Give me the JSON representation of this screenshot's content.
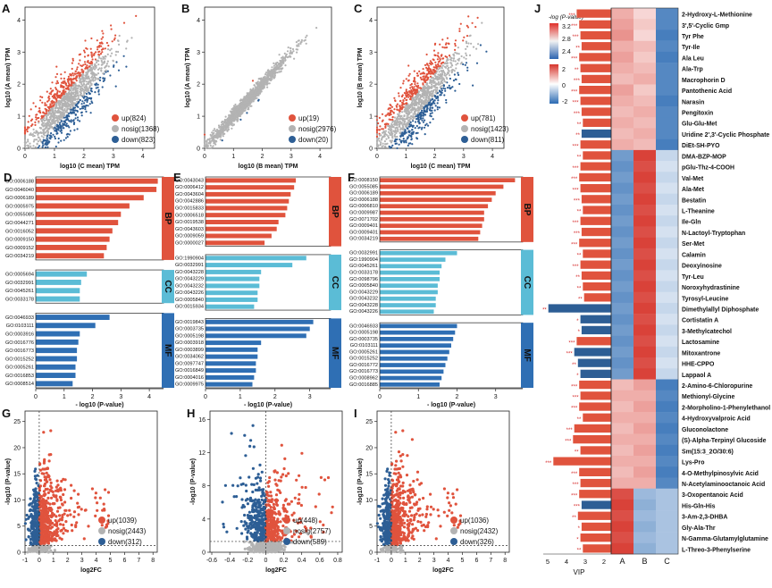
{
  "colors": {
    "up": "#e0533d",
    "nosig": "#b3b3b3",
    "down": "#2d5e95",
    "bp": "#e0533d",
    "cc": "#5bbcd6",
    "mf": "#2f6fb4",
    "vip_pos": "#e0533d",
    "vip_neg": "#2d5e95"
  },
  "scatter_panels": [
    {
      "letter": "A",
      "ylabel": "log10 (A mean) TPM",
      "xlabel": "log10 (C mean) TPM",
      "legend": [
        {
          "kind": "up",
          "label": "up(824)"
        },
        {
          "kind": "nosig",
          "label": "nosig(1368)"
        },
        {
          "kind": "down",
          "label": "down(823)"
        }
      ],
      "xticks": [
        0,
        1,
        2,
        3,
        4
      ],
      "yticks": [
        0,
        1,
        2,
        3,
        4
      ],
      "spread": "wide"
    },
    {
      "letter": "B",
      "ylabel": "log10 (A mean) TPM",
      "xlabel": "log10 (B mean) TPM",
      "legend": [
        {
          "kind": "up",
          "label": "up(19)"
        },
        {
          "kind": "nosig",
          "label": "nosig(2976)"
        },
        {
          "kind": "down",
          "label": "down(20)"
        }
      ],
      "xticks": [
        0,
        1,
        2,
        3,
        4
      ],
      "yticks": [
        0,
        1,
        2,
        3,
        4
      ],
      "spread": "narrow"
    },
    {
      "letter": "C",
      "ylabel": "log10 (B mean) TPM",
      "xlabel": "log10 (C mean) TPM",
      "legend": [
        {
          "kind": "up",
          "label": "up(781)"
        },
        {
          "kind": "nosig",
          "label": "nosig(1423)"
        },
        {
          "kind": "down",
          "label": "down(811)"
        }
      ],
      "xticks": [
        0,
        1,
        2,
        3,
        4
      ],
      "yticks": [
        0,
        1,
        2,
        3,
        4
      ],
      "spread": "wide"
    }
  ],
  "go_panels": [
    {
      "letter": "D",
      "xlabel": "- log10 (P-value)",
      "xticks": [
        0,
        1,
        2,
        3,
        4
      ],
      "xmax": 4.5,
      "groups": [
        {
          "name": "BP",
          "terms": [
            [
              "GO:0006188",
              4.3
            ],
            [
              "GO:0046040",
              4.25
            ],
            [
              "GO:0006189",
              3.8
            ],
            [
              "GO:0005975",
              3.3
            ],
            [
              "GO:0055085",
              3.0
            ],
            [
              "GO:0044271",
              2.9
            ],
            [
              "GO:0016052",
              2.7
            ],
            [
              "GO:0009150",
              2.6
            ],
            [
              "GO:0009152",
              2.5
            ],
            [
              "GO:0034219",
              2.4
            ]
          ]
        },
        {
          "name": "CC",
          "terms": [
            [
              "GO:0005694",
              1.8
            ],
            [
              "GO:0032991",
              1.6
            ],
            [
              "GO:0045261",
              1.55
            ],
            [
              "GO:0033178",
              1.55
            ]
          ]
        },
        {
          "name": "MF",
          "terms": [
            [
              "GO:0046933",
              2.6
            ],
            [
              "GO:0103111",
              2.1
            ],
            [
              "GO:0003916",
              1.55
            ],
            [
              "GO:0016776",
              1.5
            ],
            [
              "GO:0016773",
              1.45
            ],
            [
              "GO:0015252",
              1.45
            ],
            [
              "GO:0005261",
              1.4
            ],
            [
              "GO:0016853",
              1.4
            ],
            [
              "GO:0008514",
              1.3
            ]
          ]
        }
      ]
    },
    {
      "letter": "E",
      "xlabel": "- log10 (P-value)",
      "xticks": [
        0,
        1,
        2,
        3
      ],
      "xmax": 3.6,
      "groups": [
        {
          "name": "BP",
          "terms": [
            [
              "GO:0043043",
              2.6
            ],
            [
              "GO:0006412",
              2.55
            ],
            [
              "GO:0043604",
              2.45
            ],
            [
              "GO:0042886",
              2.4
            ],
            [
              "GO:0015833",
              2.35
            ],
            [
              "GO:0006518",
              2.3
            ],
            [
              "GO:0019538",
              2.1
            ],
            [
              "GO:0043603",
              2.05
            ],
            [
              "GO:0009059",
              1.9
            ],
            [
              "GO:0000027",
              1.7
            ]
          ]
        },
        {
          "name": "CC",
          "terms": [
            [
              "GO:1990904",
              2.9
            ],
            [
              "GO:0032991",
              2.5
            ],
            [
              "GO:0043228",
              1.6
            ],
            [
              "GO:0043229",
              1.55
            ],
            [
              "GO:0043232",
              1.55
            ],
            [
              "GO:0043226",
              1.5
            ],
            [
              "GO:0005840",
              1.5
            ],
            [
              "GO:0015934",
              1.4
            ]
          ]
        },
        {
          "name": "MF",
          "terms": [
            [
              "GO:0019843",
              3.1
            ],
            [
              "GO:0003735",
              3.0
            ],
            [
              "GO:0005198",
              2.9
            ],
            [
              "GO:0003918",
              1.6
            ],
            [
              "GO:0003899",
              1.5
            ],
            [
              "GO:0034062",
              1.5
            ],
            [
              "GO:0097747",
              1.45
            ],
            [
              "GO:0016849",
              1.45
            ],
            [
              "GO:0004016",
              1.4
            ],
            [
              "GO:0009975",
              1.35
            ]
          ]
        }
      ]
    },
    {
      "letter": "F",
      "xlabel": "- log10 (P-value)",
      "xticks": [
        0,
        1,
        2,
        3
      ],
      "xmax": 3.7,
      "groups": [
        {
          "name": "BP",
          "terms": [
            [
              "GO:0008150",
              3.5
            ],
            [
              "GO:0055085",
              3.2
            ],
            [
              "GO:0006189",
              3.0
            ],
            [
              "GO:0006188",
              2.9
            ],
            [
              "GO:0006810",
              2.8
            ],
            [
              "GO:0009987",
              2.7
            ],
            [
              "GO:0071702",
              2.7
            ],
            [
              "GO:0009401",
              2.65
            ],
            [
              "GO:0009401",
              2.6
            ],
            [
              "GO:0034219",
              2.55
            ]
          ]
        },
        {
          "name": "CC",
          "terms": [
            [
              "GO:0032991",
              2.0
            ],
            [
              "GO:1990904",
              1.7
            ],
            [
              "GO:0045261",
              1.6
            ],
            [
              "GO:0033178",
              1.55
            ],
            [
              "GO:0098796",
              1.55
            ],
            [
              "GO:0005840",
              1.5
            ],
            [
              "GO:0043229",
              1.5
            ],
            [
              "GO:0043232",
              1.45
            ],
            [
              "GO:0043228",
              1.45
            ],
            [
              "GO:0043226",
              1.4
            ]
          ]
        },
        {
          "name": "MF",
          "terms": [
            [
              "GO:0046933",
              2.0
            ],
            [
              "GO:0005198",
              1.95
            ],
            [
              "GO:0003735",
              1.9
            ],
            [
              "GO:0103111",
              1.85
            ],
            [
              "GO:0005261",
              1.8
            ],
            [
              "GO:0015252",
              1.75
            ],
            [
              "GO:0016772",
              1.7
            ],
            [
              "GO:0016773",
              1.65
            ],
            [
              "GO:0008962",
              1.6
            ],
            [
              "GO:0016885",
              1.55
            ]
          ]
        }
      ]
    }
  ],
  "volcano_panels": [
    {
      "letter": "G",
      "ylabel": "-log10 (P-value)",
      "xlabel": "log2FC",
      "xticks": [
        -1,
        0,
        1,
        2,
        3,
        4,
        5,
        6,
        7,
        8
      ],
      "yticks": [
        0,
        5,
        10,
        15,
        20,
        25
      ],
      "xlim": [
        -1,
        8.3
      ],
      "ylim": [
        0,
        27
      ],
      "legend": [
        {
          "kind": "up",
          "label": "up(1039)"
        },
        {
          "kind": "nosig",
          "label": "nosig(2443)"
        },
        {
          "kind": "down",
          "label": "down(312)"
        }
      ]
    },
    {
      "letter": "H",
      "ylabel": "-log10 (P-value)",
      "xlabel": "log2FC",
      "xticks": [
        -0.6,
        -0.4,
        -0.2,
        0.0,
        0.2,
        0.4,
        0.6,
        0.8
      ],
      "yticks": [
        0,
        4,
        8,
        12,
        16
      ],
      "xlim": [
        -0.62,
        0.85
      ],
      "ylim": [
        0,
        17
      ],
      "legend": [
        {
          "kind": "up",
          "label": "up(448)"
        },
        {
          "kind": "nosig",
          "label": "nosig(2757)"
        },
        {
          "kind": "down",
          "label": "down(589)"
        }
      ]
    },
    {
      "letter": "I",
      "ylabel": "-log10 (P-value)",
      "xlabel": "log2FC",
      "xticks": [
        -1,
        0,
        1,
        2,
        3,
        4,
        5,
        6,
        7,
        8
      ],
      "yticks": [
        0,
        5,
        10,
        15,
        20,
        25
      ],
      "xlim": [
        -1,
        8.3
      ],
      "ylim": [
        0,
        27
      ],
      "legend": [
        {
          "kind": "up",
          "label": "up(1036)"
        },
        {
          "kind": "nosig",
          "label": "nosig(2432)"
        },
        {
          "kind": "down",
          "label": "down(326)"
        }
      ]
    }
  ],
  "panel_j": {
    "letter": "J",
    "legend_title": "-log (P-value)",
    "pv_ticks": [
      "3.2",
      "2.8",
      "2.4"
    ],
    "fc_ticks": [
      "2",
      "0",
      "-2"
    ],
    "vip_label": "VIP",
    "vip_ticks": [
      "5",
      "4",
      "3",
      "2"
    ],
    "columns": [
      "A",
      "B",
      "C"
    ],
    "rows": [
      [
        "2-Hydroxy-L-Methionine",
        "***",
        2.8,
        [
          0.6,
          0.3,
          -1.2
        ]
      ],
      [
        "3',5'-Cyclic Gmp",
        "***",
        2.6,
        [
          0.7,
          0.4,
          -1.2
        ]
      ],
      [
        "Tyr Phe",
        "***",
        2.5,
        [
          0.8,
          0.3,
          -1.3
        ]
      ],
      [
        "Tyr-Ile",
        "**",
        2.4,
        [
          0.6,
          0.5,
          -1.2
        ]
      ],
      [
        "Ala Leu",
        "***",
        2.6,
        [
          0.7,
          0.4,
          -1.3
        ]
      ],
      [
        "Ala-Trp",
        "**",
        2.5,
        [
          0.6,
          0.5,
          -1.2
        ]
      ],
      [
        "Macrophorin D",
        "***",
        2.4,
        [
          0.5,
          0.6,
          -1.2
        ]
      ],
      [
        "Pantothenic Acid",
        "***",
        2.6,
        [
          0.7,
          0.4,
          -1.2
        ]
      ],
      [
        "Narasin",
        "***",
        2.5,
        [
          0.6,
          0.5,
          -1.3
        ]
      ],
      [
        "Pengitoxin",
        "***",
        2.4,
        [
          0.5,
          0.6,
          -1.2
        ]
      ],
      [
        "Glu-Glu-Met",
        "**",
        2.3,
        [
          0.6,
          0.5,
          -1.2
        ]
      ],
      [
        "Uridine 2',3'-Cyclic Phosphate",
        "**",
        -2.4,
        [
          0.5,
          0.6,
          -1.2
        ]
      ],
      [
        "DiEt-SH-PYO",
        "***",
        2.5,
        [
          0.6,
          0.5,
          -1.3
        ]
      ],
      [
        "DMA-BZP-MOP",
        "**",
        2.3,
        [
          -1.0,
          1.4,
          -0.4
        ]
      ],
      [
        "pGlu-Thz-4-COOH",
        "***",
        2.5,
        [
          -1.1,
          1.3,
          -0.3
        ]
      ],
      [
        "Val-Met",
        "***",
        2.6,
        [
          -1.0,
          1.4,
          -0.4
        ]
      ],
      [
        "Ala-Met",
        "***",
        2.5,
        [
          -1.1,
          1.3,
          -0.3
        ]
      ],
      [
        "Bestatin",
        "***",
        2.4,
        [
          -1.0,
          1.4,
          -0.4
        ]
      ],
      [
        "L-Theanine",
        "**",
        2.3,
        [
          -1.1,
          1.3,
          -0.3
        ]
      ],
      [
        "Ile-Gln",
        "***",
        2.5,
        [
          -1.0,
          1.4,
          -0.4
        ]
      ],
      [
        "N-Lactoyl-Tryptophan",
        "***",
        2.4,
        [
          -1.1,
          1.3,
          -0.3
        ]
      ],
      [
        "Ser-Met",
        "***",
        2.6,
        [
          -1.0,
          1.4,
          -0.4
        ]
      ],
      [
        "Calamin",
        "**",
        2.3,
        [
          -1.1,
          1.3,
          -0.3
        ]
      ],
      [
        "Deoxyinosine",
        "***",
        2.5,
        [
          -1.0,
          1.4,
          -0.4
        ]
      ],
      [
        "Tyr-Leu",
        "**",
        2.4,
        [
          -1.1,
          1.3,
          -0.3
        ]
      ],
      [
        "Noroxyhydrastinine",
        "**",
        2.3,
        [
          -1.0,
          1.4,
          -0.4
        ]
      ],
      [
        "Tyrosyl-Leucine",
        "**",
        2.2,
        [
          -1.1,
          1.3,
          -0.3
        ]
      ],
      [
        "Dimethylallyl Diphosphate",
        "**",
        -5.1,
        [
          -1.0,
          1.4,
          -0.4
        ]
      ],
      [
        "Cortistatin A",
        "*",
        -2.5,
        [
          -1.1,
          1.3,
          -0.3
        ]
      ],
      [
        "3-Methylcatechol",
        "*",
        -2.4,
        [
          -1.0,
          1.4,
          -0.4
        ]
      ],
      [
        "Lactosamine",
        "***",
        2.8,
        [
          -1.1,
          1.3,
          -0.3
        ]
      ],
      [
        "Mitoxantrone",
        "***",
        -3.0,
        [
          -1.0,
          1.4,
          -0.4
        ]
      ],
      [
        "HHE-CPPO",
        "**",
        -2.7,
        [
          -1.1,
          1.3,
          -0.3
        ]
      ],
      [
        "Lappaol A",
        "*",
        -2.5,
        [
          -1.0,
          1.4,
          -0.4
        ]
      ],
      [
        "2-Amino-6-Chloropurine",
        "***",
        2.6,
        [
          0.5,
          0.7,
          -1.3
        ]
      ],
      [
        "Methionyl-Glycine",
        "***",
        2.5,
        [
          0.6,
          0.6,
          -1.2
        ]
      ],
      [
        "2-Morpholino-1-Phenylethanol",
        "***",
        2.6,
        [
          0.5,
          0.7,
          -1.3
        ]
      ],
      [
        "4-Hydroxyvalproic Acid",
        "**",
        2.3,
        [
          0.6,
          0.6,
          -1.2
        ]
      ],
      [
        "Gluconolactone",
        "***",
        3.0,
        [
          0.5,
          0.7,
          -1.3
        ]
      ],
      [
        "(S)-Alpha-Terpinyl Glucoside",
        "***",
        3.1,
        [
          0.6,
          0.6,
          -1.2
        ]
      ],
      [
        "Sm(15:3_2O/30:6)",
        "**",
        2.5,
        [
          0.5,
          0.7,
          -1.3
        ]
      ],
      [
        "Lys-Pro",
        "***",
        4.7,
        [
          0.6,
          0.6,
          -1.2
        ]
      ],
      [
        "4-O-Methylpinosylvic Acid",
        "***",
        2.6,
        [
          0.5,
          0.7,
          -1.3
        ]
      ],
      [
        "N-Acetylaminooctanoic Acid",
        "***",
        2.5,
        [
          0.6,
          0.6,
          -1.2
        ]
      ],
      [
        "3-Oxopentanoic Acid",
        "***",
        2.6,
        [
          1.3,
          -0.7,
          -0.6
        ]
      ],
      [
        "His-Gln-His",
        "***",
        -2.4,
        [
          1.4,
          -0.8,
          -0.6
        ]
      ],
      [
        "3-Am-2,3-DHBA",
        "**",
        2.7,
        [
          1.3,
          -0.7,
          -0.6
        ]
      ],
      [
        "Gly-Ala-Thr",
        "*",
        2.4,
        [
          1.4,
          -0.8,
          -0.6
        ]
      ],
      [
        "N-Gamma-Glutamylglutamine",
        "*",
        2.5,
        [
          1.3,
          -0.7,
          -0.6
        ]
      ],
      [
        "L-Threo-3-Phenylserine",
        "**",
        2.3,
        [
          1.4,
          -0.8,
          -0.6
        ]
      ]
    ]
  }
}
